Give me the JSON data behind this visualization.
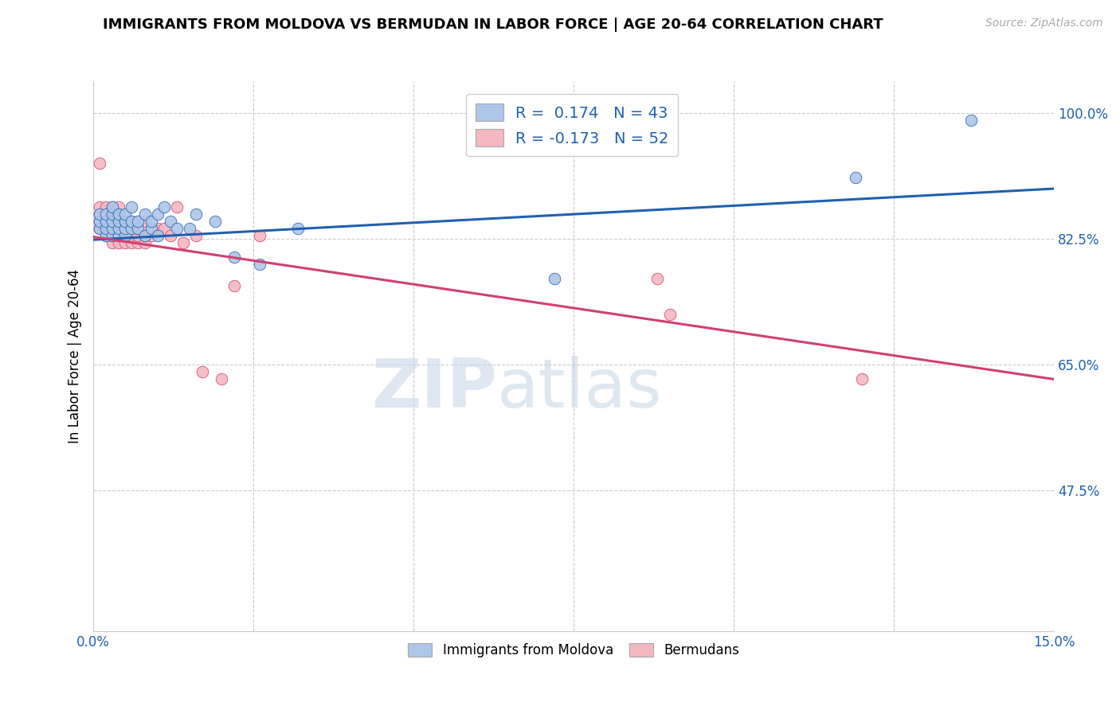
{
  "title": "IMMIGRANTS FROM MOLDOVA VS BERMUDAN IN LABOR FORCE | AGE 20-64 CORRELATION CHART",
  "source_text": "Source: ZipAtlas.com",
  "ylabel": "In Labor Force | Age 20-64",
  "xlim": [
    0.0,
    0.15
  ],
  "ylim": [
    0.28,
    1.045
  ],
  "xticks": [
    0.0,
    0.025,
    0.05,
    0.075,
    0.1,
    0.125,
    0.15
  ],
  "xtick_labels": [
    "0.0%",
    "",
    "",
    "",
    "",
    "",
    "15.0%"
  ],
  "yticks_right": [
    1.0,
    0.825,
    0.65,
    0.475
  ],
  "ytick_labels_right": [
    "100.0%",
    "82.5%",
    "65.0%",
    "47.5%"
  ],
  "moldova_R": 0.174,
  "moldova_N": 43,
  "bermudan_R": -0.173,
  "bermudan_N": 52,
  "moldova_color": "#aec6e8",
  "bermudan_color": "#f4b8c1",
  "moldova_line_color": "#2060b0",
  "bermudan_line_color": "#d04070",
  "legend_labels": [
    "Immigrants from Moldova",
    "Bermudans"
  ],
  "watermark_zip": "ZIP",
  "watermark_atlas": "atlas",
  "moldova_x": [
    0.001,
    0.001,
    0.001,
    0.002,
    0.002,
    0.002,
    0.002,
    0.003,
    0.003,
    0.003,
    0.003,
    0.003,
    0.004,
    0.004,
    0.004,
    0.004,
    0.005,
    0.005,
    0.005,
    0.005,
    0.006,
    0.006,
    0.006,
    0.007,
    0.007,
    0.008,
    0.008,
    0.009,
    0.009,
    0.01,
    0.01,
    0.011,
    0.012,
    0.013,
    0.015,
    0.016,
    0.019,
    0.022,
    0.026,
    0.032,
    0.072,
    0.119,
    0.137
  ],
  "moldova_y": [
    0.84,
    0.85,
    0.86,
    0.83,
    0.84,
    0.85,
    0.86,
    0.83,
    0.84,
    0.85,
    0.86,
    0.87,
    0.83,
    0.84,
    0.85,
    0.86,
    0.83,
    0.84,
    0.85,
    0.86,
    0.84,
    0.85,
    0.87,
    0.84,
    0.85,
    0.83,
    0.86,
    0.84,
    0.85,
    0.83,
    0.86,
    0.87,
    0.85,
    0.84,
    0.84,
    0.86,
    0.85,
    0.8,
    0.79,
    0.84,
    0.77,
    0.91,
    0.99
  ],
  "bermudan_x": [
    0.001,
    0.001,
    0.001,
    0.001,
    0.001,
    0.002,
    0.002,
    0.002,
    0.002,
    0.002,
    0.003,
    0.003,
    0.003,
    0.003,
    0.003,
    0.003,
    0.004,
    0.004,
    0.004,
    0.004,
    0.004,
    0.004,
    0.005,
    0.005,
    0.005,
    0.005,
    0.006,
    0.006,
    0.006,
    0.006,
    0.007,
    0.007,
    0.007,
    0.007,
    0.008,
    0.008,
    0.008,
    0.009,
    0.009,
    0.01,
    0.011,
    0.012,
    0.013,
    0.014,
    0.016,
    0.017,
    0.02,
    0.022,
    0.026,
    0.088,
    0.09,
    0.12
  ],
  "bermudan_y": [
    0.84,
    0.85,
    0.86,
    0.87,
    0.93,
    0.83,
    0.84,
    0.85,
    0.86,
    0.87,
    0.82,
    0.83,
    0.84,
    0.85,
    0.86,
    0.87,
    0.82,
    0.83,
    0.84,
    0.85,
    0.86,
    0.87,
    0.82,
    0.83,
    0.84,
    0.85,
    0.82,
    0.83,
    0.84,
    0.85,
    0.82,
    0.83,
    0.84,
    0.85,
    0.82,
    0.83,
    0.85,
    0.83,
    0.84,
    0.84,
    0.84,
    0.83,
    0.87,
    0.82,
    0.83,
    0.64,
    0.63,
    0.76,
    0.83,
    0.77,
    0.72,
    0.63
  ]
}
